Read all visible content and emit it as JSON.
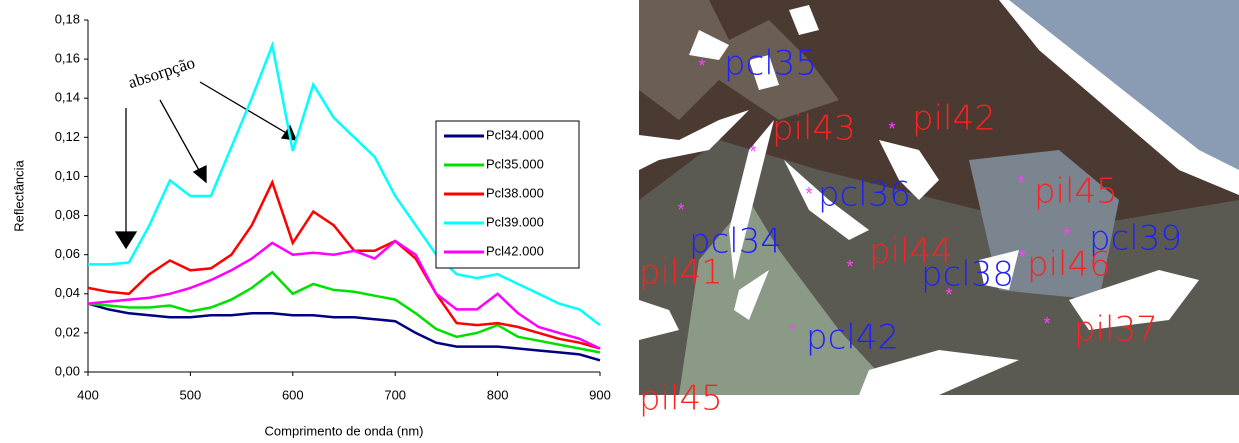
{
  "chart_data": {
    "type": "line",
    "x_label": "Comprimento de onda (nm)",
    "y_label": "Reflectância",
    "annotation": "absorpção",
    "x": [
      400,
      420,
      440,
      460,
      480,
      500,
      520,
      540,
      560,
      580,
      600,
      620,
      640,
      660,
      680,
      700,
      720,
      740,
      760,
      780,
      800,
      820,
      840,
      860,
      880,
      900
    ],
    "series": [
      {
        "name": "Pcl34.000",
        "color": "#000080",
        "values": [
          0.035,
          0.032,
          0.03,
          0.029,
          0.028,
          0.028,
          0.029,
          0.029,
          0.03,
          0.03,
          0.029,
          0.029,
          0.028,
          0.028,
          0.027,
          0.026,
          0.02,
          0.015,
          0.013,
          0.013,
          0.013,
          0.012,
          0.011,
          0.01,
          0.009,
          0.006
        ]
      },
      {
        "name": "Pcl35.000",
        "color": "#00e000",
        "values": [
          0.035,
          0.034,
          0.033,
          0.033,
          0.034,
          0.031,
          0.033,
          0.037,
          0.043,
          0.051,
          0.04,
          0.045,
          0.042,
          0.041,
          0.039,
          0.037,
          0.03,
          0.022,
          0.018,
          0.02,
          0.024,
          0.018,
          0.016,
          0.014,
          0.012,
          0.01
        ]
      },
      {
        "name": "Pcl38.000",
        "color": "#ff0000",
        "values": [
          0.043,
          0.041,
          0.04,
          0.05,
          0.057,
          0.052,
          0.053,
          0.06,
          0.075,
          0.097,
          0.066,
          0.082,
          0.075,
          0.062,
          0.062,
          0.067,
          0.058,
          0.04,
          0.025,
          0.024,
          0.025,
          0.023,
          0.02,
          0.017,
          0.015,
          0.012
        ]
      },
      {
        "name": "Pcl39.000",
        "color": "#00ffff",
        "values": [
          0.055,
          0.055,
          0.056,
          0.075,
          0.098,
          0.09,
          0.09,
          0.115,
          0.14,
          0.167,
          0.113,
          0.147,
          0.13,
          0.12,
          0.11,
          0.09,
          0.075,
          0.06,
          0.05,
          0.048,
          0.05,
          0.045,
          0.04,
          0.035,
          0.032,
          0.024
        ]
      },
      {
        "name": "Pcl42.000",
        "color": "#ff00ff",
        "values": [
          0.035,
          0.036,
          0.037,
          0.038,
          0.04,
          0.043,
          0.047,
          0.052,
          0.058,
          0.066,
          0.06,
          0.061,
          0.06,
          0.062,
          0.058,
          0.067,
          0.06,
          0.04,
          0.032,
          0.032,
          0.04,
          0.03,
          0.023,
          0.02,
          0.017,
          0.012
        ]
      }
    ],
    "xlim": [
      400,
      900
    ],
    "xticks": [
      400,
      500,
      600,
      700,
      800,
      900
    ],
    "ylim": [
      0,
      0.18
    ],
    "yticks": [
      {
        "value": 0,
        "label": "0,00"
      },
      {
        "value": 0.02,
        "label": "0,02"
      },
      {
        "value": 0.04,
        "label": "0,04"
      },
      {
        "value": 0.06,
        "label": "0,06"
      },
      {
        "value": 0.08,
        "label": "0,08"
      },
      {
        "value": 0.1,
        "label": "0,10"
      },
      {
        "value": 0.12,
        "label": "0,12"
      },
      {
        "value": 0.14,
        "label": "0,14"
      },
      {
        "value": 0.16,
        "label": "0,16"
      },
      {
        "value": 0.18,
        "label": "0,18"
      }
    ],
    "legend": "right"
  },
  "map": {
    "labels": [
      "pcl35",
      "pil43",
      "pil42",
      "pcl36",
      "pil45",
      "pcl34",
      "pcl39",
      "pil44",
      "pcl38",
      "pil46",
      "pil41",
      "pcl42",
      "pil37",
      "pil45"
    ]
  }
}
